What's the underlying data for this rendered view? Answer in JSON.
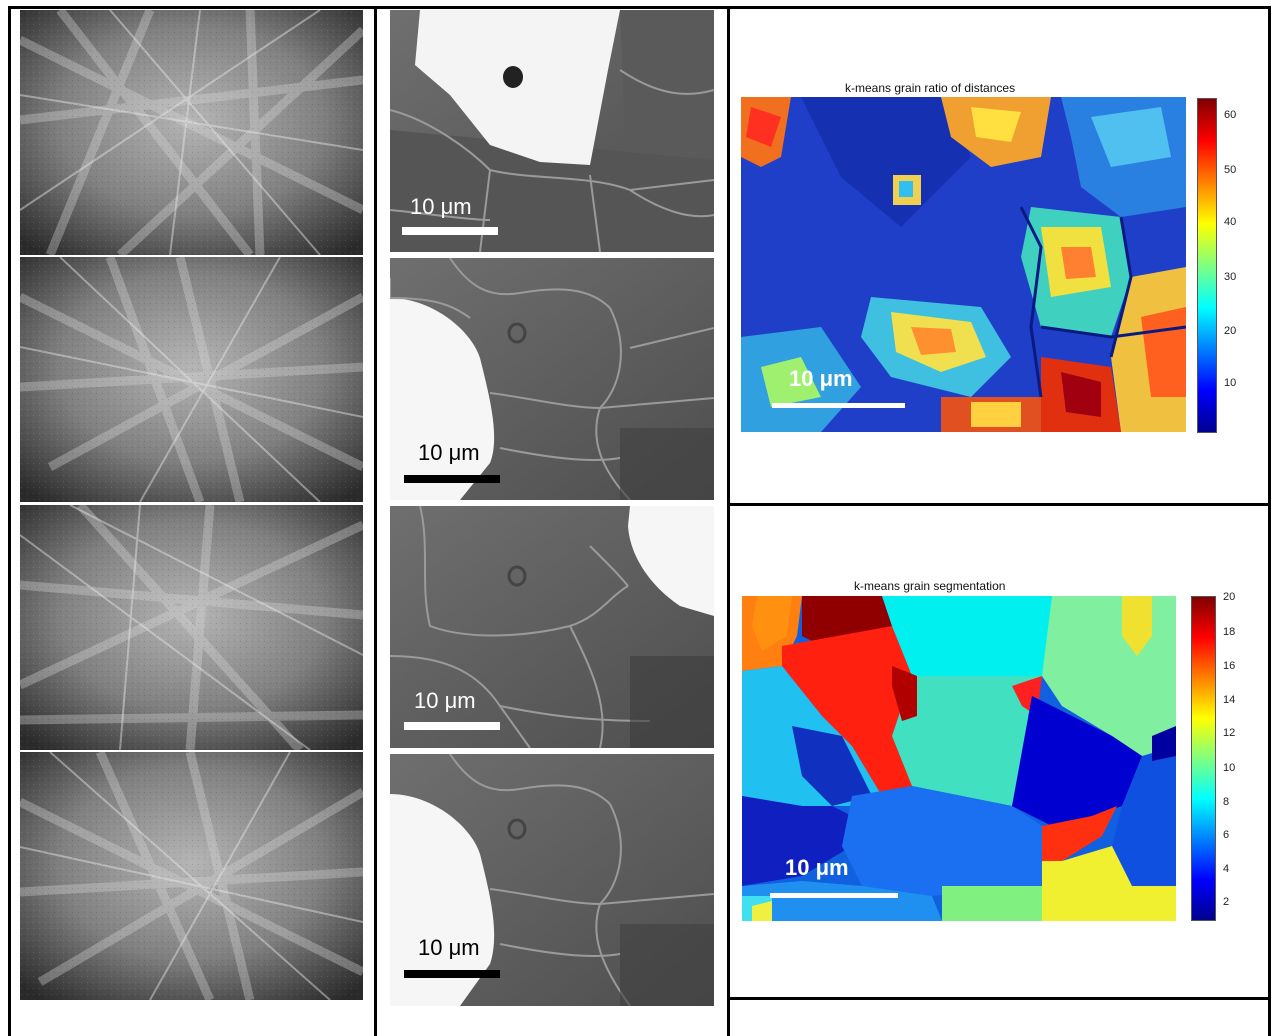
{
  "figure": {
    "column_middle": {
      "panels": [
        {
          "scale_label": "10 μm",
          "bar_color": "#ffffff",
          "label_color": "#ffffff",
          "bright_region": "top"
        },
        {
          "scale_label": "10 μm",
          "bar_color": "#000000",
          "label_color": "#000000",
          "bright_region": "left"
        },
        {
          "scale_label": "10 μm",
          "bar_color": "#ffffff",
          "label_color": "#ffffff",
          "bright_region": "right"
        },
        {
          "scale_label": "10 μm",
          "bar_color": "#000000",
          "label_color": "#000000",
          "bright_region": "left"
        }
      ]
    },
    "maps": [
      {
        "title": "k-means grain ratio of distances",
        "scale_label": "10 μm",
        "colorbar_ticks": [
          "60",
          "50",
          "40",
          "30",
          "20",
          "10"
        ]
      },
      {
        "title": "k-means grain segmentation",
        "scale_label": "10 μm",
        "colorbar_ticks": [
          "20",
          "18",
          "16",
          "14",
          "12",
          "10",
          "8",
          "6",
          "4",
          "2"
        ]
      }
    ]
  }
}
